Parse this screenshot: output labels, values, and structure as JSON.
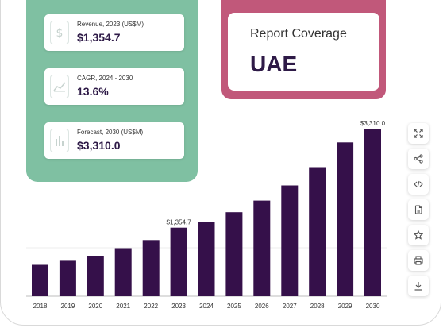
{
  "stats": [
    {
      "label": "Revenue, 2023 (US$M)",
      "value": "$1,354.7",
      "icon": "dollar-icon"
    },
    {
      "label": "CAGR, 2024 - 2030",
      "value": "13.6%",
      "icon": "trend-chart-icon"
    },
    {
      "label": "Forecast, 2030 (US$M)",
      "value": "$3,310.0",
      "icon": "bar-chart-icon"
    }
  ],
  "report": {
    "title": "Report Coverage",
    "value": "UAE"
  },
  "toolbar": [
    {
      "name": "fullscreen-button",
      "icon": "expand-icon"
    },
    {
      "name": "share-button",
      "icon": "share-icon"
    },
    {
      "name": "embed-button",
      "icon": "code-icon"
    },
    {
      "name": "export-file-button",
      "icon": "file-icon"
    },
    {
      "name": "favorite-button",
      "icon": "star-icon"
    },
    {
      "name": "print-button",
      "icon": "printer-icon"
    },
    {
      "name": "download-button",
      "icon": "download-icon"
    }
  ],
  "colors": {
    "bar": "#35104a",
    "stats_panel": "#7fc0a2",
    "report_panel": "#c1587a",
    "value_text": "#2e1a47"
  },
  "chart_data": {
    "type": "bar",
    "categories": [
      "2018",
      "2019",
      "2020",
      "2021",
      "2022",
      "2023",
      "2024",
      "2025",
      "2026",
      "2027",
      "2028",
      "2029",
      "2030"
    ],
    "values": [
      620,
      700,
      800,
      950,
      1110,
      1354.7,
      1470,
      1660,
      1890,
      2190,
      2550,
      3040,
      3310.0
    ],
    "data_labels": {
      "2023": "$1,354.7",
      "2030": "$3,310.0"
    },
    "title": "",
    "xlabel": "",
    "ylabel": "",
    "ylim": [
      0,
      3500
    ]
  }
}
